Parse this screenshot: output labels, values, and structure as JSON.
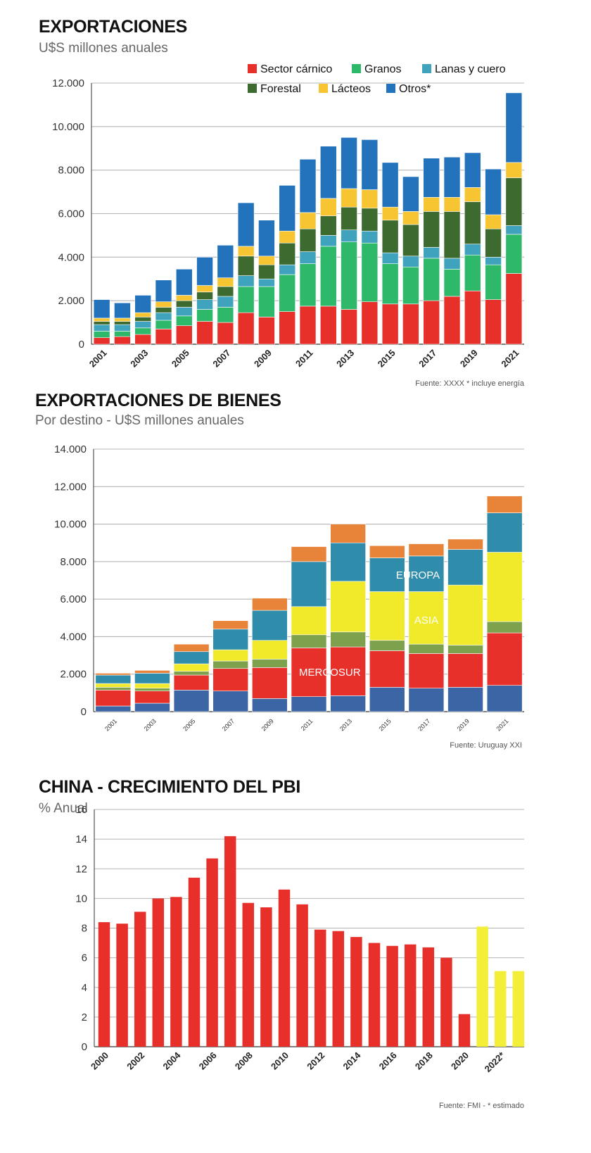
{
  "chart_data": [
    {
      "type": "bar",
      "stacked": true,
      "title": "EXPORTACIONES",
      "subtitle": "U$S millones anuales",
      "source": "Fuente: XXXX * incluye energía",
      "ylim": [
        0,
        12000
      ],
      "yticks": [
        "0",
        "2.000",
        "4.000",
        "6.000",
        "8.000",
        "10.000",
        "12.000"
      ],
      "xticks": [
        "2001",
        "2003",
        "2005",
        "2007",
        "2009",
        "2011",
        "2013",
        "2015",
        "2017",
        "2019",
        "2021"
      ],
      "legend_position": "top-right",
      "grid": true,
      "categories": [
        "2001",
        "2002",
        "2003",
        "2004",
        "2005",
        "2006",
        "2007",
        "2008",
        "2009",
        "2010",
        "2011",
        "2012",
        "2013",
        "2014",
        "2015",
        "2016",
        "2017",
        "2018",
        "2019",
        "2020",
        "2021"
      ],
      "series": [
        {
          "name": "Sector cárnico",
          "color": "#e8302b",
          "values": [
            300,
            350,
            450,
            700,
            850,
            1050,
            1000,
            1450,
            1250,
            1500,
            1750,
            1750,
            1600,
            1950,
            1850,
            1850,
            2000,
            2200,
            2450,
            2050,
            3250
          ]
        },
        {
          "name": "Granos",
          "color": "#2eb86a",
          "values": [
            300,
            250,
            300,
            400,
            450,
            550,
            700,
            1200,
            1400,
            1700,
            1950,
            2750,
            3100,
            2700,
            1850,
            1700,
            1950,
            1250,
            1650,
            1600,
            1800
          ]
        },
        {
          "name": "Lanas y cuero",
          "color": "#3fa3bd",
          "values": [
            300,
            300,
            300,
            350,
            400,
            450,
            500,
            500,
            350,
            450,
            550,
            500,
            550,
            550,
            500,
            500,
            500,
            500,
            500,
            350,
            400
          ]
        },
        {
          "name": "Forestal",
          "color": "#3d6a2e",
          "values": [
            150,
            150,
            200,
            250,
            300,
            350,
            450,
            900,
            650,
            1000,
            1050,
            900,
            1050,
            1050,
            1500,
            1450,
            1650,
            2150,
            1950,
            1300,
            2200
          ]
        },
        {
          "name": "Lácteos",
          "color": "#f7c532",
          "values": [
            150,
            150,
            200,
            250,
            250,
            300,
            400,
            450,
            400,
            550,
            750,
            800,
            850,
            850,
            600,
            600,
            650,
            650,
            650,
            650,
            700
          ]
        },
        {
          "name": "Otros*",
          "color": "#2273bb",
          "values": [
            850,
            700,
            800,
            1000,
            1200,
            1300,
            1500,
            2000,
            1650,
            2100,
            2450,
            2400,
            2350,
            2300,
            2050,
            1600,
            1800,
            1850,
            1600,
            2100,
            3200
          ]
        }
      ]
    },
    {
      "type": "bar",
      "stacked": true,
      "title": "EXPORTACIONES DE BIENES",
      "subtitle": "Por destino - U$S millones anuales",
      "source": "Fuente: Uruguay XXI",
      "ylim": [
        0,
        14000
      ],
      "yticks": [
        "0",
        "2.000",
        "4.000",
        "6.000",
        "8.000",
        "10.000",
        "12.000",
        "14.000"
      ],
      "xticks": [
        "2001",
        "2003",
        "2005",
        "2007",
        "2009",
        "2011",
        "2013",
        "2015",
        "2017",
        "2019",
        "2021"
      ],
      "grid": true,
      "categories": [
        "2001",
        "2003",
        "2005",
        "2007",
        "2009",
        "2011",
        "2013",
        "2015",
        "2017",
        "2019",
        "2021"
      ],
      "annotations": [
        "MERCOSUR",
        "ASIA",
        "EUROPA"
      ],
      "series": [
        {
          "color": "#3b65a5",
          "values": [
            300,
            450,
            1150,
            1100,
            700,
            800,
            850,
            1300,
            1250,
            1300,
            1400
          ]
        },
        {
          "color": "#e8302b",
          "values": [
            850,
            650,
            800,
            1200,
            1650,
            2600,
            2600,
            1950,
            1850,
            1800,
            2800
          ]
        },
        {
          "color": "#7ea14e",
          "values": [
            150,
            150,
            200,
            400,
            450,
            700,
            800,
            550,
            500,
            450,
            600
          ]
        },
        {
          "color": "#f0ea2a",
          "values": [
            200,
            250,
            400,
            600,
            1000,
            1500,
            2700,
            2600,
            2800,
            3200,
            3700
          ]
        },
        {
          "color": "#2f8cab",
          "values": [
            450,
            550,
            650,
            1100,
            1600,
            2400,
            2050,
            1800,
            1900,
            1900,
            2100
          ]
        },
        {
          "color": "#e8843a",
          "values": [
            100,
            150,
            400,
            450,
            650,
            800,
            1000,
            650,
            650,
            550,
            900
          ]
        }
      ]
    },
    {
      "type": "bar",
      "title": "CHINA - CRECIMIENTO DEL PBI",
      "subtitle": "% Anual",
      "source": "Fuente: FMI - * estimado",
      "ylim": [
        0,
        16
      ],
      "yticks": [
        "0",
        "2",
        "4",
        "6",
        "8",
        "10",
        "12",
        "14",
        "16"
      ],
      "xticks": [
        "2000",
        "2002",
        "2004",
        "2006",
        "2008",
        "2010",
        "2012",
        "2014",
        "2016",
        "2018",
        "2020",
        "2022*"
      ],
      "grid": true,
      "categories": [
        "2000",
        "2001",
        "2002",
        "2003",
        "2004",
        "2005",
        "2006",
        "2007",
        "2008",
        "2009",
        "2010",
        "2011",
        "2012",
        "2013",
        "2014",
        "2015",
        "2016",
        "2017",
        "2018",
        "2019",
        "2020",
        "2021",
        "2022*",
        "2023*"
      ],
      "colors": {
        "actual": "#e8302b",
        "estimated": "#f3ee38"
      },
      "estimated_from_index": 21,
      "values": [
        8.4,
        8.3,
        9.1,
        10.0,
        10.1,
        11.4,
        12.7,
        14.2,
        9.7,
        9.4,
        10.6,
        9.6,
        7.9,
        7.8,
        7.4,
        7.0,
        6.8,
        6.9,
        6.7,
        6.0,
        2.2,
        8.1,
        5.1,
        5.1
      ]
    }
  ]
}
